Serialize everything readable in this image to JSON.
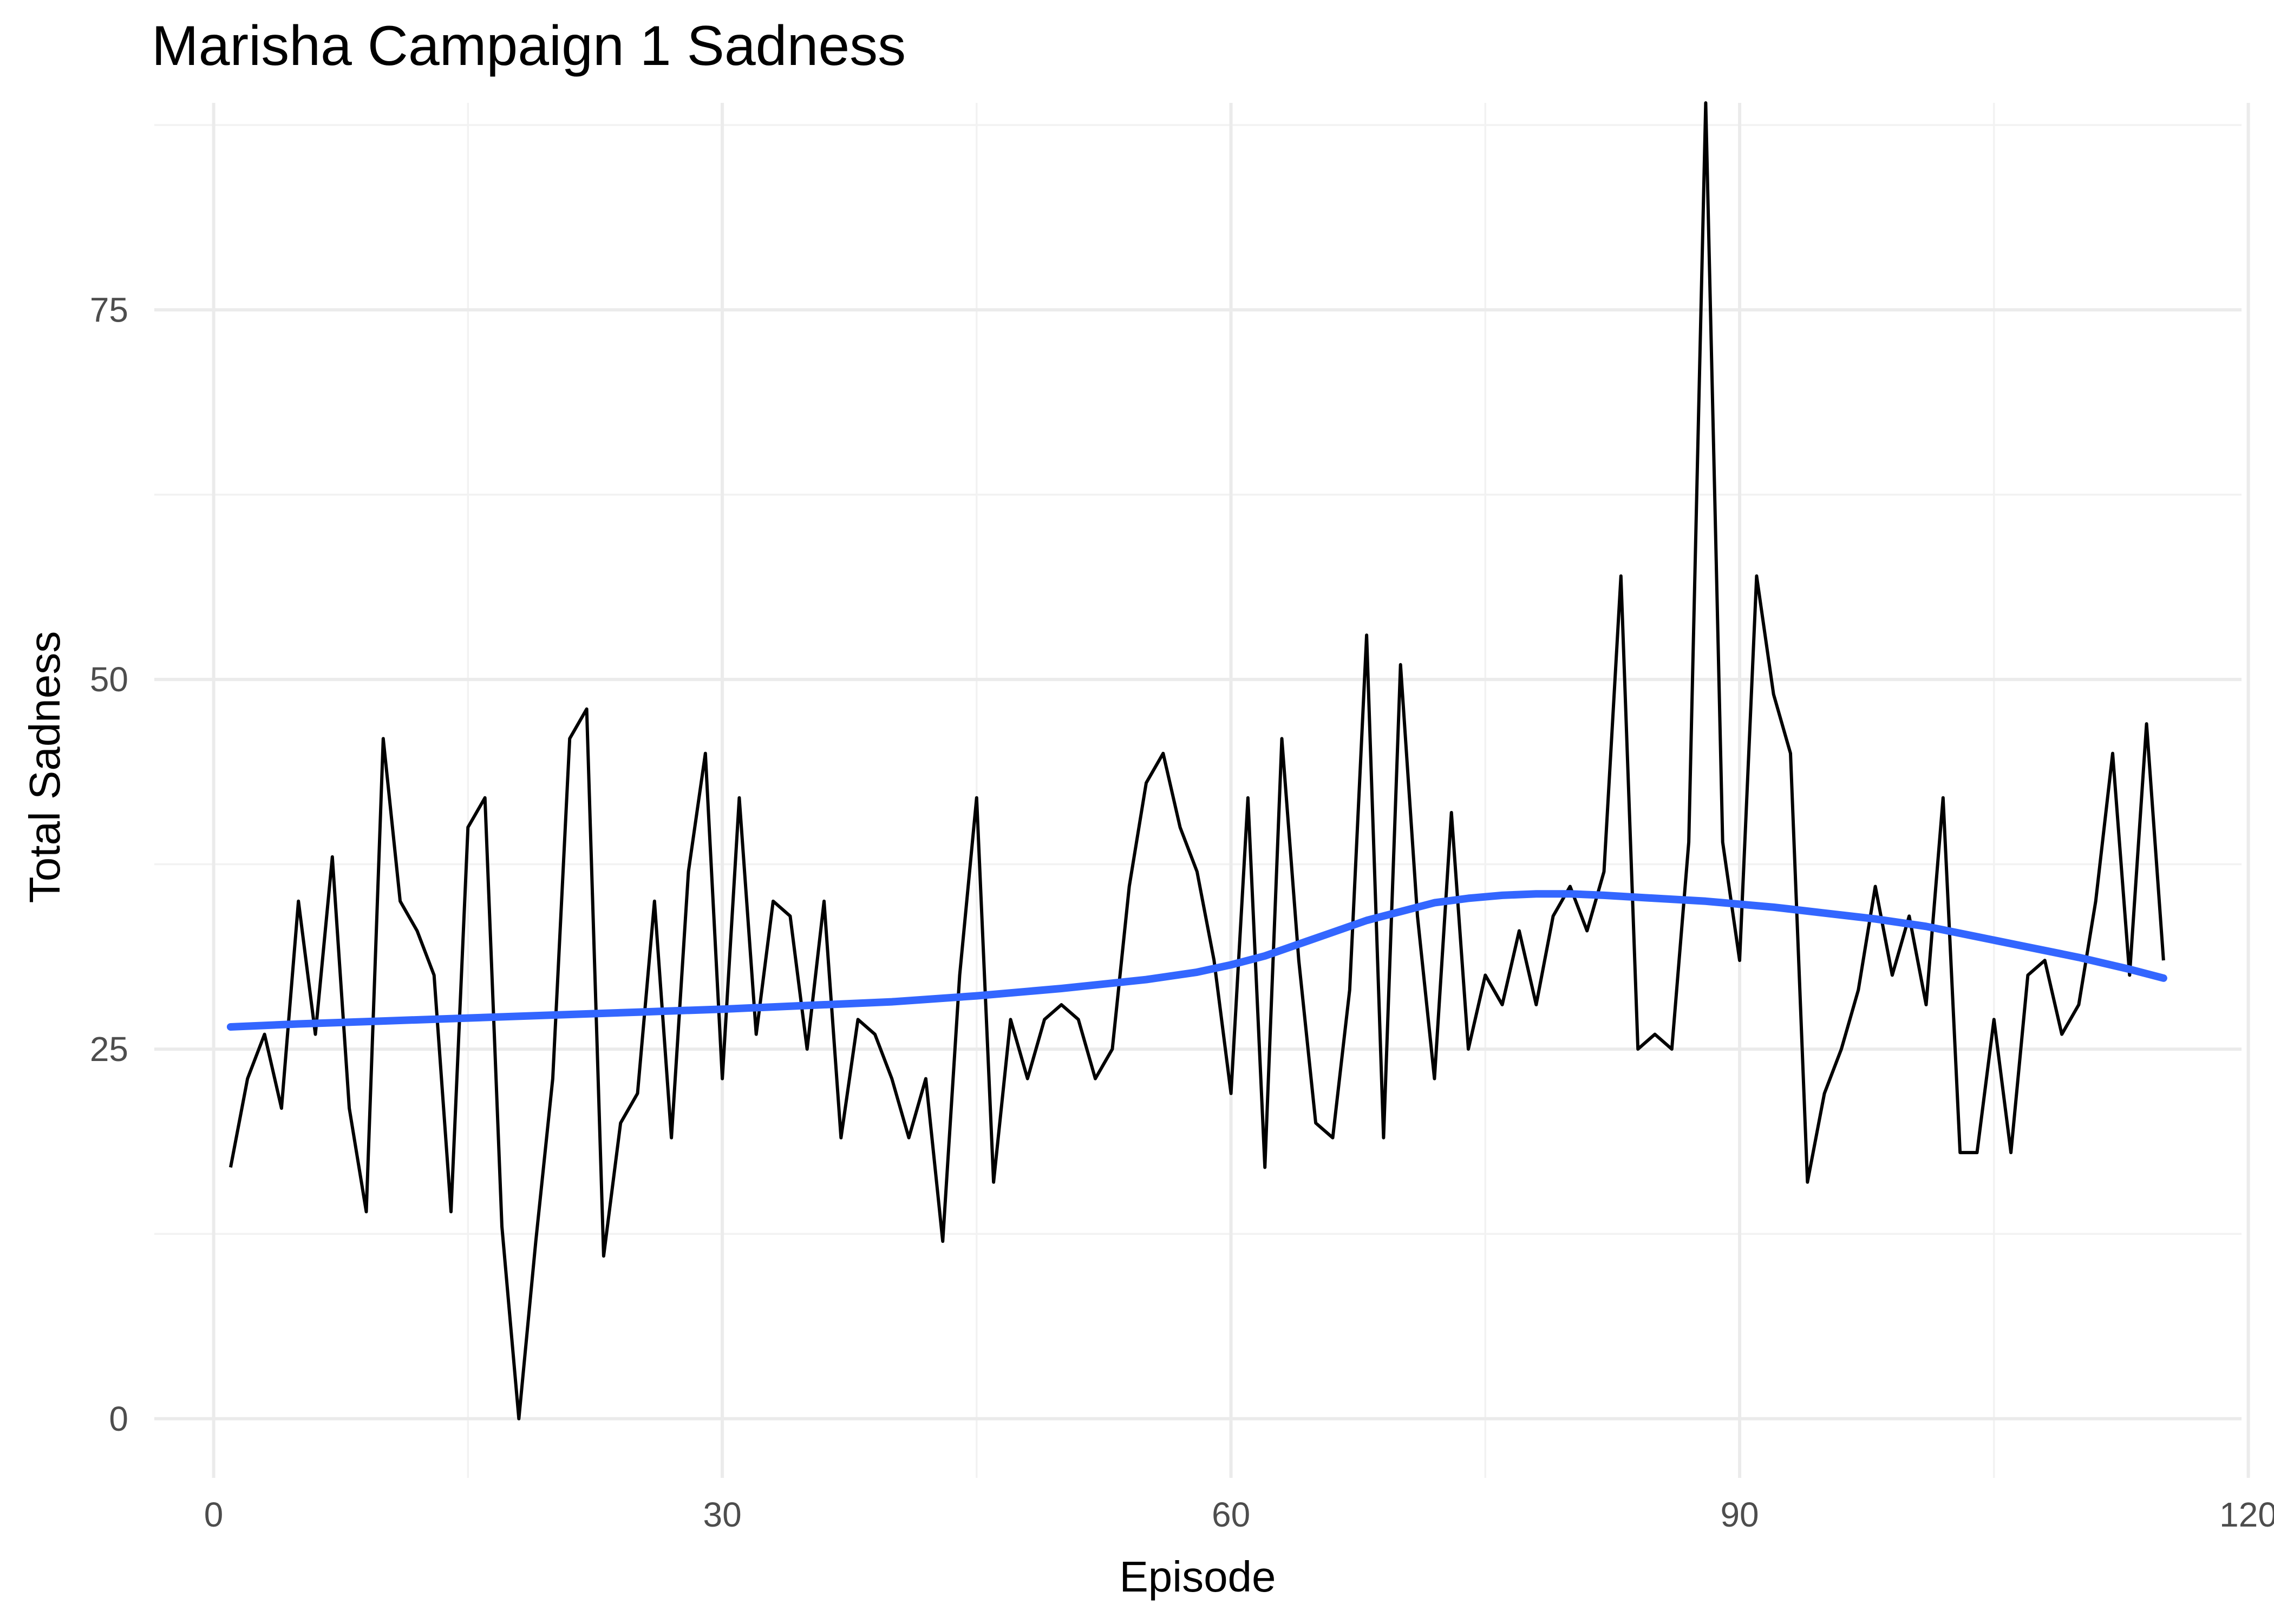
{
  "chart_data": {
    "type": "line",
    "title": "Marisha Campaign 1 Sadness",
    "xlabel": "Episode",
    "ylabel": "Total Sadness",
    "xlim": [
      -3.5,
      119.6
    ],
    "ylim": [
      -4,
      89
    ],
    "x_ticks": [
      0,
      30,
      60,
      90,
      120
    ],
    "y_ticks": [
      0,
      25,
      50,
      75
    ],
    "x_minor": [
      15,
      45,
      75,
      105
    ],
    "y_minor": [
      12.5,
      37.5,
      62.5,
      87.5
    ],
    "grid": true,
    "legend": "none",
    "colors": {
      "series": "#000000",
      "smooth": "#3366ff",
      "grid": "#ebebeb"
    },
    "series": [
      {
        "x": [
          1,
          2,
          3,
          4,
          5,
          6,
          7,
          8,
          9,
          10,
          11,
          12,
          13,
          14,
          15,
          16,
          17,
          18,
          19,
          20,
          21,
          22,
          23,
          24,
          25,
          26,
          27,
          28,
          29,
          30,
          31,
          32,
          33,
          34,
          35,
          36,
          37,
          38,
          39,
          40,
          41,
          42,
          43,
          44,
          45,
          46,
          47,
          48,
          49,
          50,
          51,
          52,
          53,
          54,
          55,
          56,
          57,
          58,
          59,
          60,
          61,
          62,
          63,
          64,
          65,
          66,
          67,
          68,
          69,
          70,
          71,
          72,
          73,
          74,
          75,
          76,
          77,
          78,
          79,
          80,
          81,
          82,
          83,
          84,
          85,
          86,
          87,
          88,
          89,
          90,
          91,
          92,
          93,
          94,
          95,
          96,
          97,
          98,
          99,
          100,
          101,
          102,
          103,
          104,
          105,
          106,
          107,
          108,
          109,
          110,
          111,
          112,
          113,
          114,
          115
        ],
        "values": [
          17,
          23,
          26,
          21,
          35,
          26,
          38,
          21,
          14,
          46,
          35,
          33,
          30,
          14,
          40,
          42,
          13,
          0,
          12,
          23,
          46,
          48,
          11,
          20,
          22,
          35,
          19,
          37,
          45,
          23,
          42,
          26,
          35,
          34,
          25,
          35,
          19,
          27,
          26,
          23,
          19,
          23,
          12,
          30,
          42,
          16,
          27,
          23,
          27,
          28,
          27,
          23,
          25,
          36,
          43,
          45,
          40,
          37,
          31,
          22,
          42,
          17,
          46,
          31,
          20,
          19,
          29,
          53,
          19,
          51,
          34,
          23,
          41,
          25,
          30,
          28,
          33,
          28,
          34,
          36,
          33,
          37,
          57,
          25,
          26,
          25,
          39,
          89,
          39,
          31,
          57,
          49,
          45,
          16,
          22,
          25,
          29,
          36,
          30,
          34,
          28,
          42,
          18,
          18,
          27,
          18,
          30,
          31,
          26,
          28,
          35,
          45,
          30,
          47,
          31
        ]
      },
      {
        "x": [
          1,
          5,
          10,
          15,
          20,
          25,
          30,
          35,
          40,
          45,
          50,
          55,
          58,
          60,
          62,
          64,
          66,
          68,
          70,
          72,
          74,
          76,
          78,
          80,
          82,
          85,
          88,
          90,
          92,
          95,
          98,
          101,
          104,
          107,
          110,
          113,
          115
        ],
        "values": [
          26.5,
          26.7,
          26.9,
          27.1,
          27.3,
          27.5,
          27.7,
          27.95,
          28.2,
          28.6,
          29.1,
          29.7,
          30.2,
          30.7,
          31.3,
          32.1,
          32.9,
          33.7,
          34.3,
          34.9,
          35.2,
          35.4,
          35.5,
          35.5,
          35.4,
          35.2,
          35.0,
          34.8,
          34.6,
          34.2,
          33.8,
          33.3,
          32.6,
          31.9,
          31.2,
          30.4,
          29.8
        ]
      }
    ]
  }
}
